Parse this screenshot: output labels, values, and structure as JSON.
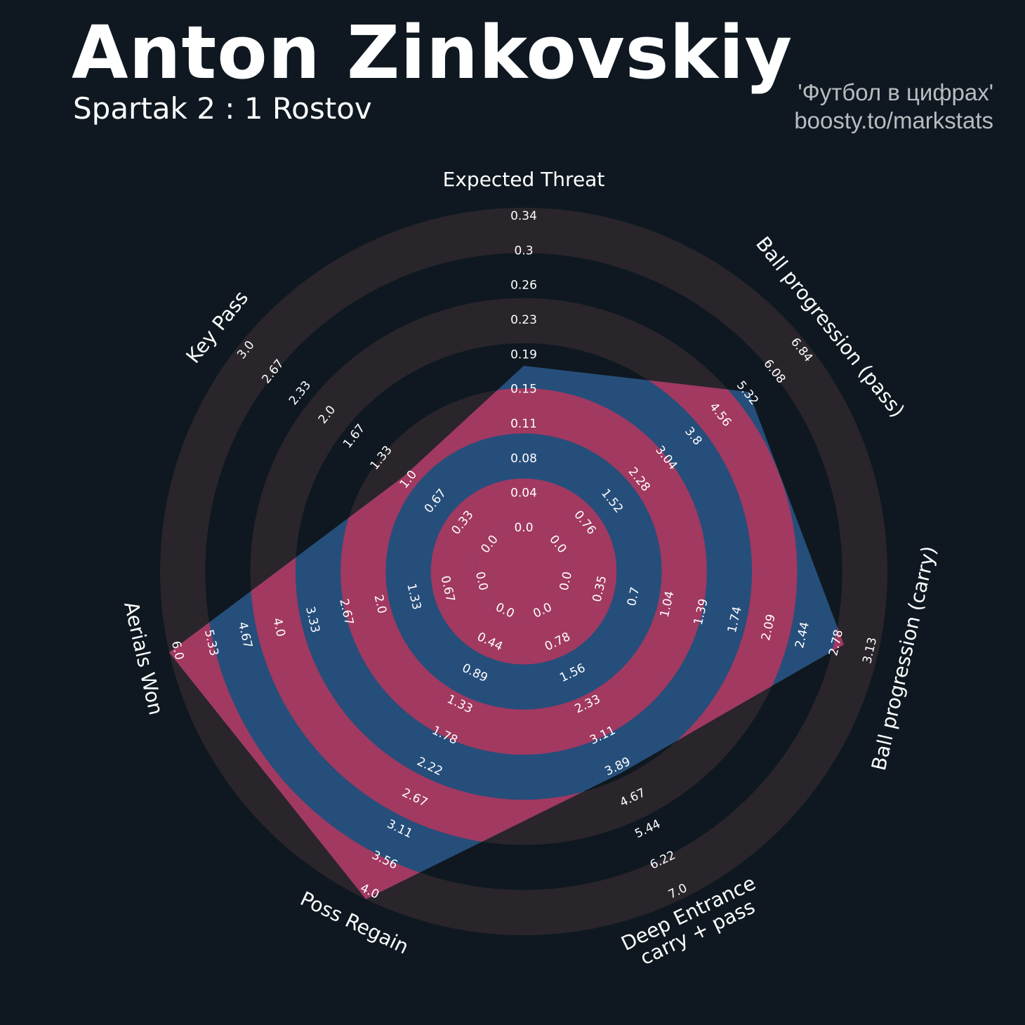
{
  "header": {
    "title": "Anton Zinkovskiy",
    "subtitle": "Spartak 2 : 1 Rostov",
    "credit_line1": "'Футбол в цифрах'",
    "credit_line2": "boosty.to/markstats"
  },
  "colors": {
    "background": "#0f1820",
    "ring_light": "#29252b",
    "player_fill": "#264e7a",
    "ring_highlight": "#a13961",
    "text": "#ffffff"
  },
  "chart_data": {
    "type": "radar",
    "rings": 7,
    "axes": [
      {
        "name": "Expected Threat",
        "min": 0.0,
        "max": 0.34,
        "value": 0.17,
        "ticks": [
          "0.0",
          "0.04",
          "0.08",
          "0.11",
          "0.15",
          "0.19",
          "0.23",
          "0.26",
          "0.3",
          "0.34"
        ]
      },
      {
        "name": "Ball progression (pass)",
        "min": 0.0,
        "max": 6.84,
        "value": 5.2,
        "ticks": [
          "0.0",
          "0.76",
          "1.52",
          "2.28",
          "3.04",
          "3.8",
          "4.56",
          "5.32",
          "6.08",
          "6.84"
        ]
      },
      {
        "name": "Ball progression (carry)",
        "min": 0.0,
        "max": 3.13,
        "value": 2.78,
        "ticks": [
          "0.0",
          "0.35",
          "0.7",
          "1.04",
          "1.39",
          "1.74",
          "2.09",
          "2.44",
          "2.78",
          "3.13"
        ]
      },
      {
        "name": "Deep Entrance\ncarry + pass",
        "min": 0.0,
        "max": 7.0,
        "value": 3.9,
        "ticks": [
          "0.0",
          "0.78",
          "1.56",
          "2.33",
          "3.11",
          "3.89",
          "4.67",
          "5.44",
          "6.22",
          "7.0"
        ]
      },
      {
        "name": "Poss Regain",
        "min": 0.0,
        "max": 4.0,
        "value": 4.0,
        "ticks": [
          "0.0",
          "0.44",
          "0.89",
          "1.33",
          "1.78",
          "2.22",
          "2.67",
          "3.11",
          "3.56",
          "4.0"
        ]
      },
      {
        "name": "Aerials Won",
        "min": 0.0,
        "max": 6.0,
        "value": 6.0,
        "ticks": [
          "0.0",
          "0.67",
          "1.33",
          "2.0",
          "2.67",
          "3.33",
          "4.0",
          "4.67",
          "5.33",
          "6.0"
        ]
      },
      {
        "name": "Key Pass",
        "min": 0.0,
        "max": 3.0,
        "value": 1.0,
        "ticks": [
          "0.0",
          "0.33",
          "0.67",
          "1.0",
          "1.33",
          "1.67",
          "2.0",
          "2.33",
          "2.67",
          "3.0"
        ]
      }
    ]
  }
}
